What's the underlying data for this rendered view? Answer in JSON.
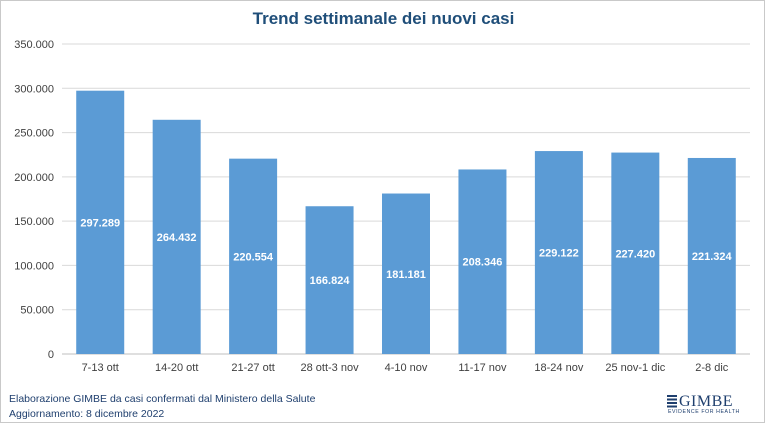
{
  "chart_data": {
    "type": "bar",
    "title": "Trend settimanale dei nuovi casi",
    "xlabel": "",
    "ylabel": "",
    "categories": [
      "7-13 ott",
      "14-20 ott",
      "21-27 ott",
      "28 ott-3 nov",
      "4-10 nov",
      "11-17 nov",
      "18-24 nov",
      "25 nov-1 dic",
      "2-8 dic"
    ],
    "values": [
      297289,
      264432,
      220554,
      166824,
      181181,
      208346,
      229122,
      227420,
      221324
    ],
    "value_labels": [
      "297.289",
      "264.432",
      "220.554",
      "166.824",
      "181.181",
      "208.346",
      "229.122",
      "227.420",
      "221.324"
    ],
    "yticks": [
      "0",
      "50.000",
      "100.000",
      "150.000",
      "200.000",
      "250.000",
      "300.000",
      "350.000"
    ],
    "ylim": [
      0,
      350000
    ],
    "grid": true,
    "legend": "none",
    "bar_color": "#5b9bd5",
    "grid_color": "#d9d9d9",
    "label_color": "#ffffff"
  },
  "footer": {
    "line1": "Elaborazione GIMBE da casi confermati dal Ministero della Salute",
    "line2": "Aggiornamento: 8 dicembre 2022"
  },
  "logo": {
    "name": "GIMBE",
    "tagline": "EVIDENCE FOR HEALTH",
    "color": "#1f3f6e"
  }
}
